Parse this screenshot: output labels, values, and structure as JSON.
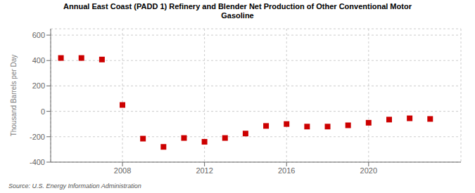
{
  "chart_data": {
    "type": "scatter",
    "title": "Annual East Coast (PADD 1) Refinery and Blender Net Production of Other Conventional Motor\nGasoline",
    "ylabel": "Thousand Barrels per Day",
    "annotations": [
      "Source: U.S. Energy Information Administration"
    ],
    "x": [
      2005,
      2006,
      2007,
      2008,
      2009,
      2010,
      2011,
      2012,
      2013,
      2014,
      2015,
      2016,
      2017,
      2018,
      2019,
      2020,
      2021,
      2022,
      2023
    ],
    "values": [
      420,
      420,
      408,
      50,
      -215,
      -280,
      -210,
      -240,
      -210,
      -175,
      -115,
      -100,
      -120,
      -120,
      -110,
      -90,
      -65,
      -55,
      -60
    ],
    "color": "#cc0000",
    "marker": "square",
    "xlim": [
      2004.5,
      2024.5
    ],
    "xticks": [
      2008,
      2012,
      2016,
      2020
    ],
    "ylim": [
      -400,
      650
    ],
    "yticks": [
      -400,
      -200,
      0,
      200,
      400,
      600
    ],
    "grid": true
  }
}
